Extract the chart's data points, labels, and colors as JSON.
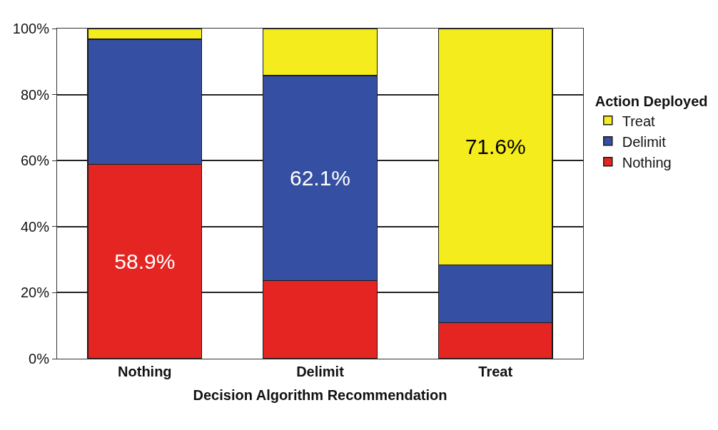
{
  "chart_data": {
    "type": "bar",
    "stacked": true,
    "xlabel": "Decision Algorithm Recommendation",
    "legend_title": "Action Deployed",
    "categories": [
      "Nothing",
      "Delimit",
      "Treat"
    ],
    "series": [
      {
        "name": "Nothing",
        "color": "#e42522",
        "values": [
          58.9,
          23.6,
          10.9
        ],
        "value_labels": [
          "58.9%",
          null,
          null
        ]
      },
      {
        "name": "Delimit",
        "color": "#3550a3",
        "values": [
          37.9,
          62.1,
          17.5
        ],
        "value_labels": [
          null,
          "62.1%",
          null
        ]
      },
      {
        "name": "Treat",
        "color": "#f4ec1c",
        "values": [
          3.2,
          14.3,
          71.6
        ],
        "value_labels": [
          null,
          null,
          "71.6%"
        ]
      }
    ],
    "ylim": [
      0,
      100
    ],
    "yticks": [
      {
        "value": 0,
        "label": "0%"
      },
      {
        "value": 20,
        "label": "20%"
      },
      {
        "value": 40,
        "label": "40%"
      },
      {
        "value": 60,
        "label": "60%"
      },
      {
        "value": 80,
        "label": "80%"
      },
      {
        "value": 100,
        "label": "100%"
      }
    ],
    "grid": "y",
    "legend": "right"
  }
}
